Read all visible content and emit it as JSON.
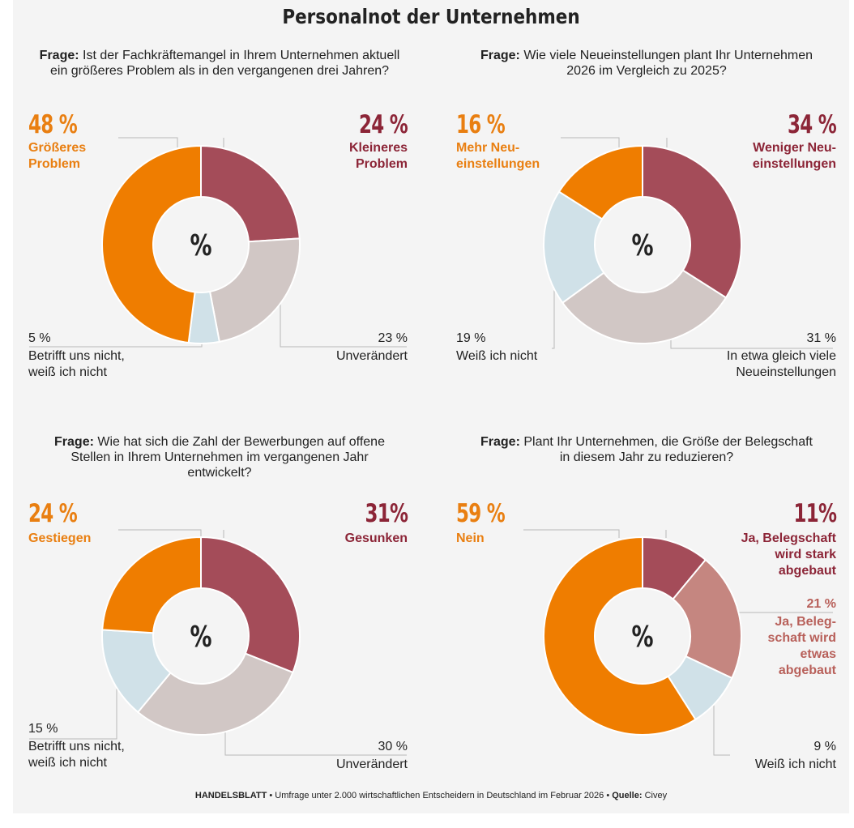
{
  "title": "Personalnot der Unternehmen",
  "colors": {
    "orange": "#ef7d00",
    "darkred": "#a44c59",
    "grey": "#d1c7c5",
    "lightblue": "#d0e1e8",
    "rose": "#c58680"
  },
  "chart_data": [
    {
      "type": "pie",
      "question_prefix": "Frage:",
      "question": "Ist der Fachkräftemangel in Ihrem Unternehmen aktuell ein größeres Problem als in den vergangenen drei Jahren?",
      "center_label": "%",
      "slices": [
        {
          "value": 24,
          "value_label": "24 %",
          "label": "Kleineres\nProblem",
          "color": "#a44c59"
        },
        {
          "value": 23,
          "value_label": "23 %",
          "label": "Unverändert",
          "color": "#d1c7c5"
        },
        {
          "value": 5,
          "value_label": "5 %",
          "label": "Betrifft uns nicht,\nweiß ich nicht",
          "color": "#d0e1e8"
        },
        {
          "value": 48,
          "value_label": "48 %",
          "label": "Größeres\nProblem",
          "color": "#ef7d00"
        }
      ]
    },
    {
      "type": "pie",
      "question_prefix": "Frage:",
      "question": "Wie viele Neueinstellungen plant Ihr Unternehmen 2026 im Vergleich zu 2025?",
      "center_label": "%",
      "slices": [
        {
          "value": 34,
          "value_label": "34 %",
          "label": "Weniger Neu-\neinstellungen",
          "color": "#a44c59"
        },
        {
          "value": 31,
          "value_label": "31 %",
          "label": "In etwa gleich viele\nNeueinstellungen",
          "color": "#d1c7c5"
        },
        {
          "value": 19,
          "value_label": "19 %",
          "label": "Weiß ich nicht",
          "color": "#d0e1e8"
        },
        {
          "value": 16,
          "value_label": "16 %",
          "label": "Mehr Neu-\neinstellungen",
          "color": "#ef7d00"
        }
      ]
    },
    {
      "type": "pie",
      "question_prefix": "Frage:",
      "question": "Wie hat sich die Zahl der Bewerbungen auf offene Stellen in Ihrem Unternehmen im vergangenen Jahr entwickelt?",
      "center_label": "%",
      "slices": [
        {
          "value": 31,
          "value_label": "31%",
          "label": "Gesunken",
          "color": "#a44c59"
        },
        {
          "value": 30,
          "value_label": "30 %",
          "label": "Unverändert",
          "color": "#d1c7c5"
        },
        {
          "value": 15,
          "value_label": "15 %",
          "label": "Betrifft uns nicht,\nweiß ich nicht",
          "color": "#d0e1e8"
        },
        {
          "value": 24,
          "value_label": "24 %",
          "label": "Gestiegen",
          "color": "#ef7d00"
        }
      ]
    },
    {
      "type": "pie",
      "question_prefix": "Frage:",
      "question": "Plant Ihr Unternehmen, die Größe der Belegschaft in diesem Jahr zu reduzieren?",
      "center_label": "%",
      "slices": [
        {
          "value": 11,
          "value_label": "11%",
          "label": "Ja, Belegschaft\nwird stark\nabgebaut",
          "color": "#a44c59"
        },
        {
          "value": 21,
          "value_label": "21 %",
          "label": "Ja, Beleg-\nschaft wird\netwas\nabgebaut",
          "color": "#c58680"
        },
        {
          "value": 9,
          "value_label": "9 %",
          "label": "Weiß ich nicht",
          "color": "#d0e1e8"
        },
        {
          "value": 59,
          "value_label": "59 %",
          "label": "Nein",
          "color": "#ef7d00"
        }
      ]
    }
  ],
  "footer": {
    "brand": "HANDELSBLATT",
    "text": " • Umfrage unter 2.000 wirtschaftlichen Entscheidern in Deutschland im Februar 2026 • ",
    "source_label": "Quelle:",
    "source": " Civey"
  }
}
